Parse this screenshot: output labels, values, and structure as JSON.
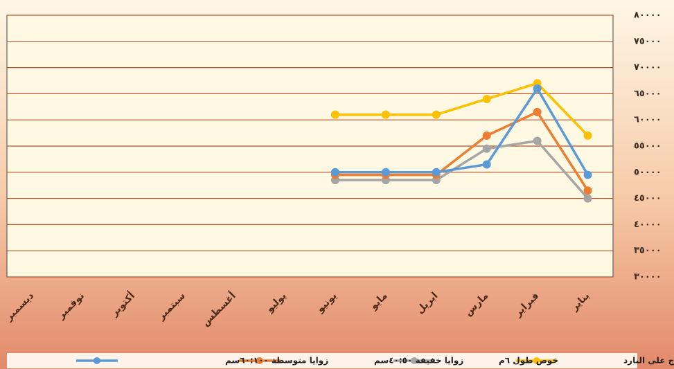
{
  "chart_data": {
    "type": "line",
    "categories": [
      "يناير",
      "فبراير",
      "مارس",
      "ابريل",
      "مايو",
      "يونيو",
      "يوليو",
      "أغسطس",
      "سبتمبر",
      "أكتوبر",
      "نوفمبر",
      "ديسمبر"
    ],
    "x_reversed": true,
    "series": [
      {
        "name": "صاج علي البارد",
        "color": "#ffc000",
        "values": [
          57000,
          67000,
          64000,
          61000,
          61000,
          61000,
          null,
          null,
          null,
          null,
          null,
          null
        ]
      },
      {
        "name": "خوص طول ٦م",
        "color": "#a5a5a5",
        "values": [
          45000,
          56000,
          54500,
          48500,
          48500,
          48500,
          null,
          null,
          null,
          null,
          null,
          null
        ]
      },
      {
        "name": "زوايا خفيفة ٤٠:٥٠سم",
        "color": "#ed7d31",
        "values": [
          46500,
          61500,
          57000,
          49500,
          49500,
          49500,
          null,
          null,
          null,
          null,
          null,
          null
        ]
      },
      {
        "name": "زوايا متوسطة ٦٠:١٠٠سم",
        "color": "#5b9bd5",
        "values": [
          49500,
          66000,
          51500,
          50000,
          50000,
          50000,
          null,
          null,
          null,
          null,
          null,
          null
        ]
      }
    ],
    "ylim": [
      30000,
      80000
    ],
    "yticks": [
      {
        "value": 30000,
        "label": "٣٠٠٠٠"
      },
      {
        "value": 35000,
        "label": "٣٥٠٠٠"
      },
      {
        "value": 40000,
        "label": "٤٠٠٠٠"
      },
      {
        "value": 45000,
        "label": "٤٥٠٠٠"
      },
      {
        "value": 50000,
        "label": "٥٠٠٠٠"
      },
      {
        "value": 55000,
        "label": "٥٥٠٠٠"
      },
      {
        "value": 60000,
        "label": "٦٠٠٠٠"
      },
      {
        "value": 65000,
        "label": "٦٥٠٠٠"
      },
      {
        "value": 70000,
        "label": "٧٠٠٠٠"
      },
      {
        "value": 75000,
        "label": "٧٥٠٠٠"
      },
      {
        "value": 80000,
        "label": "٨٠٠٠٠"
      }
    ],
    "grid": true,
    "legend": "bottom",
    "y_axis_side": "right"
  }
}
